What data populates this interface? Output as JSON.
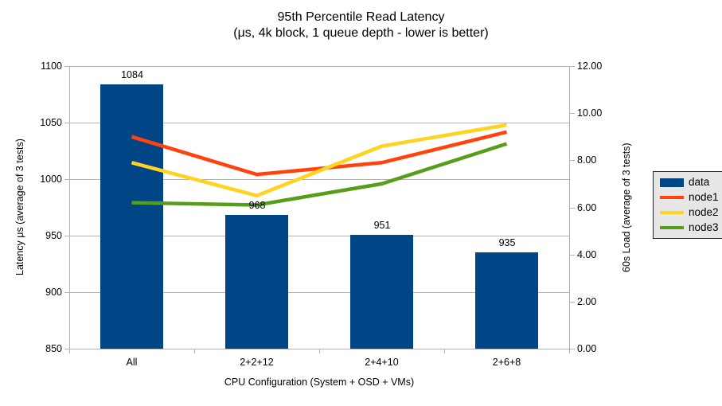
{
  "chart_data": {
    "type": "combo",
    "title": "95th Percentile Read Latency",
    "subtitle": "(μs, 4k block, 1 queue depth - lower is better)",
    "categories": [
      "All",
      "2+2+12",
      "2+4+10",
      "2+6+8"
    ],
    "series": [
      {
        "name": "data",
        "type": "bar",
        "axis": "left",
        "color": "#004586",
        "values": [
          1084,
          968,
          951,
          935
        ],
        "show_labels": true
      },
      {
        "name": "node1",
        "type": "line",
        "axis": "right",
        "color": "#ff420e",
        "values": [
          9.0,
          7.4,
          7.9,
          9.2
        ]
      },
      {
        "name": "node2",
        "type": "line",
        "axis": "right",
        "color": "#ffd320",
        "values": [
          7.9,
          6.5,
          8.6,
          9.5
        ]
      },
      {
        "name": "node3",
        "type": "line",
        "axis": "right",
        "color": "#579d1c",
        "values": [
          6.2,
          6.1,
          7.0,
          8.7
        ]
      }
    ],
    "x_axis": {
      "label": "CPU Configuration (System + OSD + VMs)"
    },
    "left_axis": {
      "label": "Latency μs (average of 3 tests)",
      "min": 850,
      "max": 1100,
      "step": 50,
      "decimals": 0
    },
    "right_axis": {
      "label": "60s Load (average of 3 tests)",
      "min": 0,
      "max": 12,
      "step": 2,
      "decimals": 2
    },
    "legend": {
      "position": "right",
      "entries": [
        "data",
        "node1",
        "node2",
        "node3"
      ]
    },
    "grid": "horizontal"
  },
  "colors": {
    "background": "#ffffff",
    "grid": "#b3b3b3",
    "axis": "#b3b3b3",
    "text": "#000000",
    "legend_bg": "#e6e6e6",
    "legend_border": "#262626"
  }
}
